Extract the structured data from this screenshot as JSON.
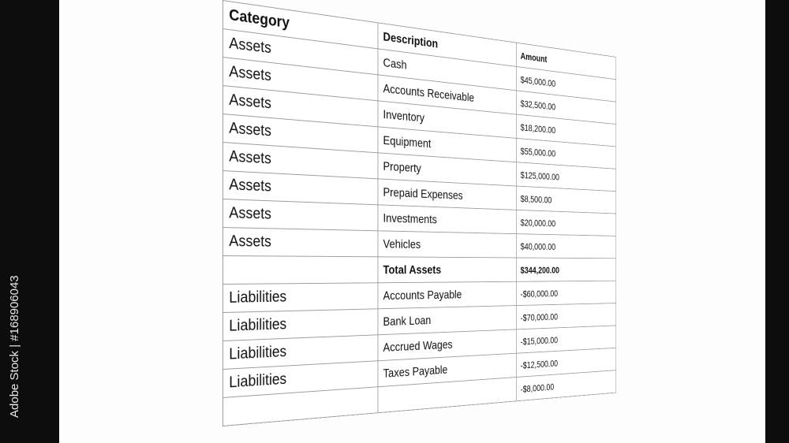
{
  "credit": "Adobe Stock | #168906043",
  "headers": {
    "category": "Category",
    "description": "Description",
    "amount": "Amount"
  },
  "rows": [
    {
      "category": "Assets",
      "description": "Cash",
      "amount": "$45,000.00",
      "type": "pos"
    },
    {
      "category": "Assets",
      "description": "Accounts Receivable",
      "amount": "$32,500.00",
      "type": "pos"
    },
    {
      "category": "Assets",
      "description": "Inventory",
      "amount": "$18,200.00",
      "type": "pos"
    },
    {
      "category": "Assets",
      "description": "Equipment",
      "amount": "$55,000.00",
      "type": "pos"
    },
    {
      "category": "Assets",
      "description": "Property",
      "amount": "$125,000.00",
      "type": "pos"
    },
    {
      "category": "Assets",
      "description": "Prepaid Expenses",
      "amount": "$8,500.00",
      "type": "pos"
    },
    {
      "category": "Assets",
      "description": "Investments",
      "amount": "$20,000.00",
      "type": "pos"
    },
    {
      "category": "Assets",
      "description": "Vehicles",
      "amount": "$40,000.00",
      "type": "pos"
    },
    {
      "category": "",
      "description": "Total Assets",
      "amount": "$344,200.00",
      "type": "pos bold"
    },
    {
      "category": "Liabilities",
      "description": "Accounts Payable",
      "amount": "-$60,000.00",
      "type": "neg"
    },
    {
      "category": "Liabilities",
      "description": "Bank Loan",
      "amount": "-$70,000.00",
      "type": "neg"
    },
    {
      "category": "Liabilities",
      "description": "Accrued Wages",
      "amount": "-$15,000.00",
      "type": "neg"
    },
    {
      "category": "Liabilities",
      "description": "Taxes Payable",
      "amount": "-$12,500.00",
      "type": "neg"
    },
    {
      "category": "",
      "description": "",
      "amount": "-$8,000.00",
      "type": "neg"
    }
  ],
  "colors": {
    "positive": "#2e9e2e",
    "negative": "#c0485a"
  }
}
